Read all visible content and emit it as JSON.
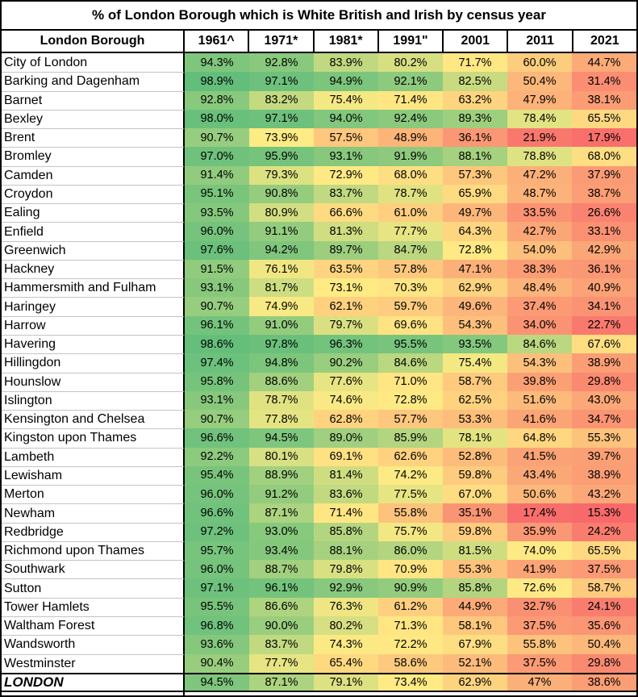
{
  "chart_data": {
    "type": "heatmap",
    "title": "% of London Borough which is White British and Irish by census year",
    "columns": [
      "London Borough",
      "1961^",
      "1971*",
      "1981*",
      "1991\"",
      "2001",
      "2011",
      "2021"
    ],
    "color_scale": {
      "min_color": "#F8696B",
      "mid_color": "#FFEB84",
      "max_color": "#63BE7B"
    },
    "rows": [
      {
        "name": "City of London",
        "values": [
          "94.3%",
          "92.8%",
          "83.9%",
          "80.2%",
          "71.7%",
          "60.0%",
          "44.7%"
        ]
      },
      {
        "name": "Barking and Dagenham",
        "values": [
          "98.9%",
          "97.1%",
          "94.9%",
          "92.1%",
          "82.5%",
          "50.4%",
          "31.4%"
        ]
      },
      {
        "name": "Barnet",
        "values": [
          "92.8%",
          "83.2%",
          "75.4%",
          "71.4%",
          "63.2%",
          "47.9%",
          "38.1%"
        ]
      },
      {
        "name": "Bexley",
        "values": [
          "98.0%",
          "97.1%",
          "94.0%",
          "92.4%",
          "89.3%",
          "78.4%",
          "65.5%"
        ]
      },
      {
        "name": "Brent",
        "values": [
          "90.7%",
          "73.9%",
          "57.5%",
          "48.9%",
          "36.1%",
          "21.9%",
          "17.9%"
        ]
      },
      {
        "name": "Bromley",
        "values": [
          "97.0%",
          "95.9%",
          "93.1%",
          "91.9%",
          "88.1%",
          "78.8%",
          "68.0%"
        ]
      },
      {
        "name": "Camden",
        "values": [
          "91.4%",
          "79.3%",
          "72.9%",
          "68.0%",
          "57.3%",
          "47.2%",
          "37.9%"
        ]
      },
      {
        "name": "Croydon",
        "values": [
          "95.1%",
          "90.8%",
          "83.7%",
          "78.7%",
          "65.9%",
          "48.7%",
          "38.7%"
        ]
      },
      {
        "name": "Ealing",
        "values": [
          "93.5%",
          "80.9%",
          "66.6%",
          "61.0%",
          "49.7%",
          "33.5%",
          "26.6%"
        ]
      },
      {
        "name": "Enfield",
        "values": [
          "96.0%",
          "91.1%",
          "81.3%",
          "77.7%",
          "64.3%",
          "42.7%",
          "33.1%"
        ]
      },
      {
        "name": "Greenwich",
        "values": [
          "97.6%",
          "94.2%",
          "89.7%",
          "84.7%",
          "72.8%",
          "54.0%",
          "42.9%"
        ]
      },
      {
        "name": "Hackney",
        "values": [
          "91.5%",
          "76.1%",
          "63.5%",
          "57.8%",
          "47.1%",
          "38.3%",
          "36.1%"
        ]
      },
      {
        "name": "Hammersmith and Fulham",
        "values": [
          "93.1%",
          "81.7%",
          "73.1%",
          "70.3%",
          "62.9%",
          "48.4%",
          "40.9%"
        ]
      },
      {
        "name": "Haringey",
        "values": [
          "90.7%",
          "74.9%",
          "62.1%",
          "59.7%",
          "49.6%",
          "37.4%",
          "34.1%"
        ]
      },
      {
        "name": "Harrow",
        "values": [
          "96.1%",
          "91.0%",
          "79.7%",
          "69.6%",
          "54.3%",
          "34.0%",
          "22.7%"
        ]
      },
      {
        "name": "Havering",
        "values": [
          "98.6%",
          "97.8%",
          "96.3%",
          "95.5%",
          "93.5%",
          "84.6%",
          "67.6%"
        ]
      },
      {
        "name": "Hillingdon",
        "values": [
          "97.4%",
          "94.8%",
          "90.2%",
          "84.6%",
          "75.4%",
          "54.3%",
          "38.9%"
        ]
      },
      {
        "name": "Hounslow",
        "values": [
          "95.8%",
          "88.6%",
          "77.6%",
          "71.0%",
          "58.7%",
          "39.8%",
          "29.8%"
        ]
      },
      {
        "name": "Islington",
        "values": [
          "93.1%",
          "78.7%",
          "74.6%",
          "72.8%",
          "62.5%",
          "51.6%",
          "43.0%"
        ]
      },
      {
        "name": "Kensington and Chelsea",
        "values": [
          "90.7%",
          "77.8%",
          "62.8%",
          "57.7%",
          "53.3%",
          "41.6%",
          "34.7%"
        ]
      },
      {
        "name": "Kingston upon Thames",
        "values": [
          "96.6%",
          "94.5%",
          "89.0%",
          "85.9%",
          "78.1%",
          "64.8%",
          "55.3%"
        ]
      },
      {
        "name": "Lambeth",
        "values": [
          "92.2%",
          "80.1%",
          "69.1%",
          "62.6%",
          "52.8%",
          "41.5%",
          "39.7%"
        ]
      },
      {
        "name": "Lewisham",
        "values": [
          "95.4%",
          "88.9%",
          "81.4%",
          "74.2%",
          "59.8%",
          "43.4%",
          "38.9%"
        ]
      },
      {
        "name": "Merton",
        "values": [
          "96.0%",
          "91.2%",
          "83.6%",
          "77.5%",
          "67.0%",
          "50.6%",
          "43.2%"
        ]
      },
      {
        "name": "Newham",
        "values": [
          "96.6%",
          "87.1%",
          "71.4%",
          "55.8%",
          "35.1%",
          "17.4%",
          "15.3%"
        ]
      },
      {
        "name": "Redbridge",
        "values": [
          "97.2%",
          "93.0%",
          "85.8%",
          "75.7%",
          "59.8%",
          "35.9%",
          "24.2%"
        ]
      },
      {
        "name": "Richmond upon Thames",
        "values": [
          "95.7%",
          "93.4%",
          "88.1%",
          "86.0%",
          "81.5%",
          "74.0%",
          "65.5%"
        ]
      },
      {
        "name": "Southwark",
        "values": [
          "96.0%",
          "88.7%",
          "79.8%",
          "70.9%",
          "55.3%",
          "41.9%",
          "37.5%"
        ]
      },
      {
        "name": "Sutton",
        "values": [
          "97.1%",
          "96.1%",
          "92.9%",
          "90.9%",
          "85.8%",
          "72.6%",
          "58.7%"
        ]
      },
      {
        "name": "Tower Hamlets",
        "values": [
          "95.5%",
          "86.6%",
          "76.3%",
          "61.2%",
          "44.9%",
          "32.7%",
          "24.1%"
        ]
      },
      {
        "name": "Waltham Forest",
        "values": [
          "96.8%",
          "90.0%",
          "80.2%",
          "71.3%",
          "58.1%",
          "37.5%",
          "35.6%"
        ]
      },
      {
        "name": "Wandsworth",
        "values": [
          "93.6%",
          "83.7%",
          "74.3%",
          "72.2%",
          "67.9%",
          "55.8%",
          "50.4%"
        ]
      },
      {
        "name": "Westminster",
        "values": [
          "90.4%",
          "77.7%",
          "65.4%",
          "58.6%",
          "52.1%",
          "37.5%",
          "29.8%"
        ]
      }
    ],
    "london": {
      "name": "LONDON",
      "values": [
        "94.5%",
        "87.1%",
        "79.1%",
        "73.4%",
        "62.9%",
        "47%",
        "38.6%"
      ]
    }
  }
}
